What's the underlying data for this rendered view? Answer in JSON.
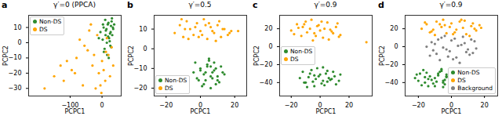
{
  "chart_data": [
    {
      "type": "scatter",
      "panel_label": "a",
      "title": "γ′=0 (PPCA)",
      "x_label": "PCPC1",
      "y_label": "PCPC2",
      "xlim": [
        -230,
        60
      ],
      "xticks": [
        -100,
        0
      ],
      "ylim": [
        -35,
        18
      ],
      "yticks": [
        -30,
        -20,
        -10,
        0,
        10
      ],
      "legend": "upper left",
      "marker": "o",
      "series": [
        {
          "name": "Non-DS",
          "color": "#2e8b2e",
          "x": [
            5,
            12,
            18,
            25,
            30,
            35,
            22,
            15,
            8,
            28,
            32,
            20,
            10,
            -5,
            2,
            26,
            38,
            14,
            19,
            24,
            31,
            6,
            -10,
            16,
            27,
            34,
            11,
            21,
            29,
            3
          ],
          "y": [
            10,
            8,
            12,
            6,
            14,
            9,
            3,
            0,
            -4,
            11,
            5,
            13,
            15,
            7,
            2,
            -2,
            12,
            9,
            4,
            1,
            16,
            -6,
            3,
            -8,
            7,
            10,
            5,
            -10,
            -3,
            12
          ]
        },
        {
          "name": "DS",
          "color": "#ffa500",
          "x": [
            -180,
            -150,
            -120,
            -95,
            -80,
            -60,
            -45,
            -30,
            -20,
            -10,
            0,
            10,
            20,
            30,
            -70,
            -110,
            -40,
            -15,
            5,
            25,
            -55,
            -25,
            -5,
            15,
            35,
            -85,
            -35,
            -2,
            12,
            -130
          ],
          "y": [
            -30,
            -22,
            -25,
            -18,
            -10,
            -28,
            -5,
            -15,
            -30,
            -20,
            -12,
            -25,
            -8,
            -3,
            2,
            -12,
            8,
            5,
            -18,
            -22,
            -2,
            -8,
            -28,
            3,
            -15,
            -20,
            12,
            -33,
            -6,
            -15
          ]
        }
      ]
    },
    {
      "type": "scatter",
      "panel_label": "b",
      "title": "γ′=0.5",
      "x_label": "PCPC1",
      "y_label": "PCPC2",
      "xlim": [
        -27,
        27
      ],
      "xticks": [
        -20,
        0,
        20
      ],
      "ylim": [
        -24,
        17
      ],
      "yticks": [
        -20,
        -10,
        0,
        10
      ],
      "legend": "lower left",
      "marker": "o",
      "series": [
        {
          "name": "Non-DS",
          "color": "#2e8b2e",
          "x": [
            -4,
            -2,
            0,
            2,
            4,
            6,
            8,
            10,
            12,
            14,
            -3,
            1,
            3,
            5,
            7,
            9,
            11,
            13,
            -1,
            2,
            4,
            6,
            8,
            10,
            0,
            5,
            7,
            3,
            9,
            6
          ],
          "y": [
            -12,
            -15,
            -10,
            -18,
            -8,
            -14,
            -11,
            -16,
            -9,
            -13,
            -7,
            -19,
            -12,
            -6,
            -15,
            -10,
            -17,
            -12,
            -16,
            -13,
            -9,
            -20,
            -7,
            -14,
            -11,
            -5,
            -12,
            -16,
            -18,
            -9
          ]
        },
        {
          "name": "DS",
          "color": "#ffa500",
          "x": [
            -15,
            -12,
            -10,
            -8,
            -6,
            -4,
            -2,
            0,
            2,
            4,
            6,
            8,
            10,
            12,
            14,
            16,
            18,
            -11,
            -7,
            -3,
            1,
            5,
            9,
            13,
            17,
            -9,
            -1,
            3,
            7,
            11,
            22
          ],
          "y": [
            8,
            12,
            6,
            14,
            10,
            7,
            13,
            9,
            15,
            5,
            11,
            8,
            12,
            6,
            10,
            7,
            9,
            15,
            5,
            11,
            7,
            13,
            4,
            10,
            8,
            10,
            6,
            12,
            9,
            14,
            9
          ]
        }
      ]
    },
    {
      "type": "scatter",
      "panel_label": "c",
      "title": "γ′=0.9",
      "x_label": "PCPC1",
      "y_label": "PCPC2",
      "xlim": [
        -28,
        36
      ],
      "xticks": [
        -20,
        0,
        20
      ],
      "ylim": [
        -55,
        35
      ],
      "yticks": [
        -40,
        -20,
        0,
        20
      ],
      "legend": "center left",
      "marker": "o",
      "series": [
        {
          "name": "Non-DS",
          "color": "#2e8b2e",
          "x": [
            -14,
            -10,
            -7,
            -4,
            -1,
            2,
            5,
            8,
            11,
            14,
            -12,
            -8,
            -5,
            -2,
            1,
            4,
            7,
            10,
            13,
            -9,
            -6,
            -3,
            0,
            3,
            6,
            9,
            -11,
            2,
            -4,
            5
          ],
          "y": [
            -35,
            -40,
            -30,
            -44,
            -33,
            -38,
            -27,
            -36,
            -42,
            -31,
            -28,
            -34,
            -39,
            -24,
            -41,
            -30,
            -37,
            -33,
            -38,
            -45,
            -26,
            -36,
            -31,
            -43,
            -35,
            -28,
            -40,
            -23,
            -32,
            -39
          ]
        },
        {
          "name": "DS",
          "color": "#ffa500",
          "x": [
            -20,
            -16,
            -13,
            -10,
            -7,
            -4,
            -1,
            2,
            5,
            8,
            11,
            14,
            -18,
            -12,
            -6,
            0,
            6,
            12,
            -15,
            -9,
            -3,
            3,
            9,
            -11,
            -5,
            1,
            7,
            13,
            -2,
            32
          ],
          "y": [
            18,
            25,
            12,
            28,
            20,
            15,
            24,
            10,
            27,
            17,
            22,
            13,
            14,
            22,
            30,
            18,
            8,
            26,
            21,
            16,
            12,
            20,
            15,
            25,
            7,
            28,
            19,
            11,
            23,
            5
          ]
        }
      ]
    },
    {
      "type": "scatter",
      "panel_label": "d",
      "title": "γ′=0.9",
      "x_label": "PCPC1",
      "y_label": "PCPC2",
      "xlim": [
        -28,
        28
      ],
      "xticks": [
        -20,
        0,
        20
      ],
      "ylim": [
        -55,
        35
      ],
      "yticks": [
        -40,
        -20,
        0,
        20
      ],
      "legend": "lower right",
      "marker": "o",
      "series": [
        {
          "name": "Non-DS",
          "color": "#2e8b2e",
          "x": [
            -22,
            -19,
            -16,
            -13,
            -10,
            -7,
            -4,
            -3,
            -4,
            -20,
            -17,
            -14,
            -11,
            -8,
            -5,
            -3,
            -6,
            -18,
            -15,
            -12,
            -9,
            -6,
            -3,
            -21,
            -10,
            -5,
            -14,
            -8,
            -16,
            -5
          ],
          "y": [
            -35,
            -30,
            -40,
            -33,
            -44,
            -28,
            -37,
            -31,
            -42,
            -38,
            -26,
            -36,
            -41,
            -32,
            -45,
            -34,
            -27,
            -43,
            -29,
            -37,
            -39,
            -25,
            -33,
            -31,
            -35,
            -40,
            -44,
            -30,
            -34,
            -38
          ]
        },
        {
          "name": "DS",
          "color": "#ffa500",
          "x": [
            -18,
            -15,
            -12,
            -9,
            -6,
            -3,
            0,
            3,
            6,
            9,
            12,
            15,
            18,
            -16,
            -10,
            -4,
            2,
            8,
            14,
            -13,
            -7,
            -1,
            5,
            11,
            17,
            -11,
            -5,
            1,
            7,
            13
          ],
          "y": [
            20,
            25,
            17,
            28,
            22,
            15,
            26,
            19,
            30,
            14,
            23,
            18,
            21,
            27,
            13,
            24,
            16,
            29,
            20,
            16,
            25,
            22,
            28,
            12,
            24,
            19,
            30,
            14,
            21,
            26
          ]
        },
        {
          "name": "Background",
          "color": "#808080",
          "x": [
            -15,
            -12,
            -9,
            -6,
            -3,
            0,
            3,
            6,
            9,
            12,
            15,
            -13,
            -10,
            -7,
            -4,
            -1,
            2,
            5,
            8,
            11,
            14,
            -11,
            -5,
            1,
            7,
            13,
            -8,
            -2,
            4,
            10
          ],
          "y": [
            0,
            5,
            -8,
            10,
            -3,
            7,
            -12,
            2,
            -6,
            8,
            -2,
            -10,
            3,
            -15,
            12,
            -5,
            9,
            -18,
            4,
            -9,
            6,
            -4,
            -1,
            -14,
            11,
            -7,
            8,
            -11,
            1,
            -3
          ]
        }
      ]
    }
  ]
}
